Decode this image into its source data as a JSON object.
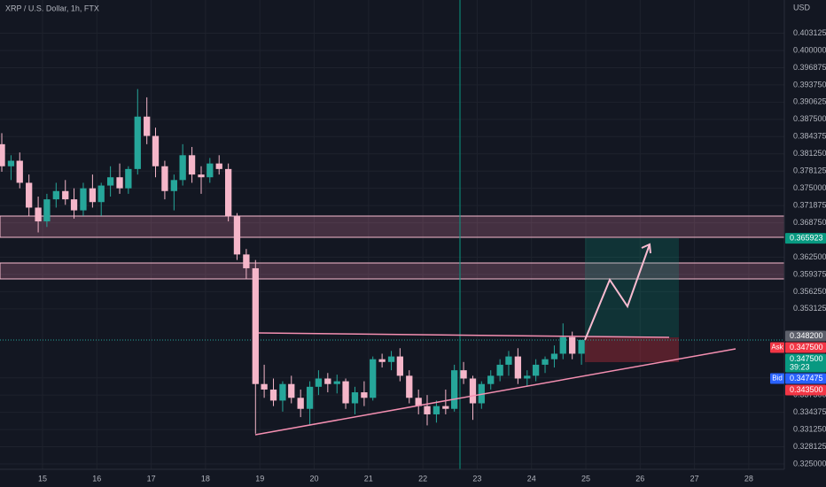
{
  "chart_data": {
    "type": "candlestick",
    "title": "XRP / U.S. Dollar, 1h, FTX",
    "y_axis_label": "USD",
    "up_color": "#26a69a",
    "down_color": "#f5b6c9",
    "grid": true,
    "xlim": [
      14.217,
      28.654
    ],
    "ylim": [
      0.324036,
      0.409154
    ],
    "xticks": [
      15,
      16,
      17,
      18,
      19,
      20,
      21,
      22,
      23,
      24,
      25,
      26,
      27,
      28
    ],
    "yticks": [
      0.403125,
      {
        "value": 0.4,
        "label": "0.400000"
      },
      0.396875,
      {
        "value": 0.39375,
        "label": "0.393750"
      },
      0.390625,
      {
        "value": 0.3875,
        "label": "0.387500"
      },
      0.384375,
      {
        "value": 0.38125,
        "label": "0.381250"
      },
      0.378125,
      {
        "value": 0.375,
        "label": "0.375000"
      },
      0.371875,
      {
        "value": 0.36875,
        "label": "0.368750"
      },
      {
        "value": 0.3625,
        "label": "0.362500"
      },
      0.359375,
      {
        "value": 0.35625,
        "label": "0.356250"
      },
      0.353125,
      0.340625,
      {
        "value": 0.3375,
        "label": "0.337500"
      },
      0.334375,
      {
        "value": 0.33125,
        "label": "0.331250"
      },
      0.328125,
      {
        "value": 0.325,
        "label": "0.325000"
      }
    ],
    "price_tags": [
      {
        "value": 0.365923,
        "color": "#089981"
      },
      {
        "value": 0.3482,
        "label": "0.348200",
        "color": "#5d606b"
      },
      {
        "name": "Ask",
        "value": 0.3475,
        "label": "0.347500",
        "color": "#f23645"
      },
      {
        "value": 0.3475,
        "label": "0.347500",
        "countdown": "39:23",
        "color": "#089981"
      },
      {
        "name": "Bid",
        "value": 0.347475,
        "color": "#2962ff"
      },
      {
        "value": 0.3435,
        "label": "0.343500",
        "color": "#f23645"
      }
    ],
    "x": [
      14.25,
      14.42,
      14.58,
      14.75,
      14.92,
      15.08,
      15.25,
      15.42,
      15.58,
      15.75,
      15.92,
      16.08,
      16.25,
      16.42,
      16.58,
      16.75,
      16.92,
      17.08,
      17.25,
      17.42,
      17.58,
      17.75,
      17.92,
      18.08,
      18.25,
      18.42,
      18.58,
      18.75,
      18.92,
      19.08,
      19.25,
      19.42,
      19.58,
      19.75,
      19.92,
      20.08,
      20.25,
      20.42,
      20.58,
      20.75,
      20.92,
      21.08,
      21.25,
      21.42,
      21.58,
      21.75,
      21.92,
      22.08,
      22.25,
      22.42,
      22.58,
      22.75,
      22.92,
      23.08,
      23.25,
      23.42,
      23.58,
      23.75,
      23.92,
      24.08,
      24.25,
      24.42,
      24.58,
      24.75,
      24.92
    ],
    "ohlc": [
      [
        0.383,
        0.385,
        0.378,
        0.379
      ],
      [
        0.379,
        0.381,
        0.3765,
        0.38
      ],
      [
        0.38,
        0.3815,
        0.375,
        0.376
      ],
      [
        0.376,
        0.3775,
        0.37,
        0.3715
      ],
      [
        0.3715,
        0.3735,
        0.367,
        0.369
      ],
      [
        0.369,
        0.374,
        0.368,
        0.373
      ],
      [
        0.373,
        0.376,
        0.3715,
        0.3745
      ],
      [
        0.3745,
        0.3765,
        0.372,
        0.373
      ],
      [
        0.373,
        0.375,
        0.3695,
        0.371
      ],
      [
        0.371,
        0.376,
        0.37,
        0.375
      ],
      [
        0.375,
        0.3775,
        0.3715,
        0.3725
      ],
      [
        0.3725,
        0.376,
        0.37,
        0.3755
      ],
      [
        0.3755,
        0.379,
        0.3735,
        0.377
      ],
      [
        0.377,
        0.3795,
        0.374,
        0.375
      ],
      [
        0.375,
        0.379,
        0.374,
        0.3785
      ],
      [
        0.3785,
        0.393,
        0.3775,
        0.388
      ],
      [
        0.388,
        0.3915,
        0.383,
        0.3845
      ],
      [
        0.3845,
        0.386,
        0.377,
        0.379
      ],
      [
        0.379,
        0.38,
        0.373,
        0.3745
      ],
      [
        0.3745,
        0.3775,
        0.371,
        0.3765
      ],
      [
        0.3765,
        0.383,
        0.3755,
        0.381
      ],
      [
        0.381,
        0.3825,
        0.376,
        0.3775
      ],
      [
        0.3775,
        0.379,
        0.374,
        0.377
      ],
      [
        0.377,
        0.3805,
        0.376,
        0.3795
      ],
      [
        0.3795,
        0.381,
        0.3775,
        0.3785
      ],
      [
        0.3785,
        0.3795,
        0.369,
        0.37
      ],
      [
        0.37,
        0.3705,
        0.362,
        0.363
      ],
      [
        0.363,
        0.364,
        0.3585,
        0.3605
      ],
      [
        0.3605,
        0.362,
        0.3305,
        0.3395
      ],
      [
        0.3395,
        0.343,
        0.337,
        0.3385
      ],
      [
        0.3385,
        0.3405,
        0.3355,
        0.3365
      ],
      [
        0.3365,
        0.34,
        0.3345,
        0.3395
      ],
      [
        0.3395,
        0.341,
        0.336,
        0.337
      ],
      [
        0.337,
        0.3385,
        0.3335,
        0.335
      ],
      [
        0.335,
        0.34,
        0.332,
        0.339
      ],
      [
        0.339,
        0.342,
        0.3375,
        0.3405
      ],
      [
        0.3405,
        0.3415,
        0.338,
        0.3395
      ],
      [
        0.3395,
        0.3412,
        0.3378,
        0.34
      ],
      [
        0.34,
        0.3405,
        0.335,
        0.336
      ],
      [
        0.336,
        0.339,
        0.334,
        0.338
      ],
      [
        0.338,
        0.34,
        0.3355,
        0.337
      ],
      [
        0.337,
        0.3445,
        0.3365,
        0.344
      ],
      [
        0.344,
        0.345,
        0.3425,
        0.3435
      ],
      [
        0.3435,
        0.3455,
        0.342,
        0.3445
      ],
      [
        0.3445,
        0.346,
        0.34,
        0.341
      ],
      [
        0.341,
        0.342,
        0.336,
        0.337
      ],
      [
        0.337,
        0.3385,
        0.334,
        0.3355
      ],
      [
        0.3355,
        0.3375,
        0.332,
        0.334
      ],
      [
        0.334,
        0.3365,
        0.3325,
        0.3355
      ],
      [
        0.3355,
        0.3385,
        0.334,
        0.335
      ],
      [
        0.335,
        0.343,
        0.3345,
        0.342
      ],
      [
        0.342,
        0.3435,
        0.3395,
        0.3405
      ],
      [
        0.3405,
        0.341,
        0.333,
        0.336
      ],
      [
        0.336,
        0.34,
        0.335,
        0.3395
      ],
      [
        0.3395,
        0.342,
        0.3385,
        0.341
      ],
      [
        0.341,
        0.344,
        0.34,
        0.343
      ],
      [
        0.343,
        0.3455,
        0.341,
        0.3445
      ],
      [
        0.3445,
        0.346,
        0.3395,
        0.3405
      ],
      [
        0.3405,
        0.342,
        0.339,
        0.341
      ],
      [
        0.341,
        0.344,
        0.34,
        0.343
      ],
      [
        0.343,
        0.3445,
        0.3415,
        0.344
      ],
      [
        0.344,
        0.3465,
        0.3425,
        0.345
      ],
      [
        0.345,
        0.3505,
        0.344,
        0.348
      ],
      [
        0.348,
        0.349,
        0.344,
        0.345
      ],
      [
        0.345,
        0.3475,
        0.343,
        0.3475
      ]
    ]
  }
}
